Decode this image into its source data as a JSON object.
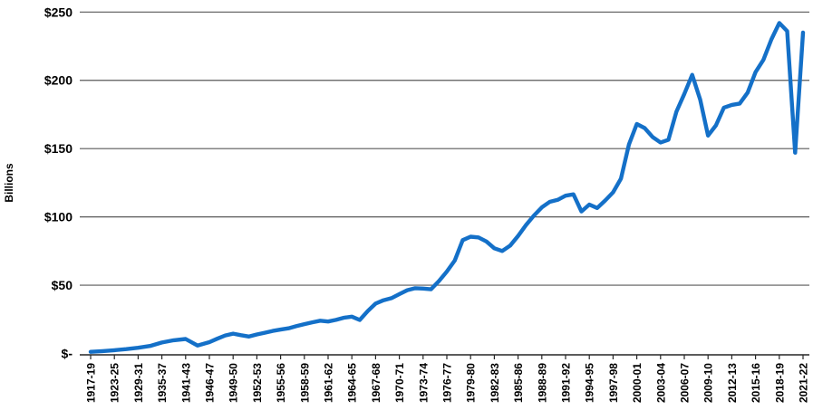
{
  "chart_data": {
    "type": "line",
    "title": "",
    "ylabel": "Billions",
    "xlabel": "",
    "ylim": [
      0,
      250
    ],
    "grid": "horizontal",
    "legend": "none",
    "y_ticks": [
      {
        "label": "$250",
        "value": 250
      },
      {
        "label": "$200",
        "value": 200
      },
      {
        "label": "$150",
        "value": 150
      },
      {
        "label": "$100",
        "value": 100
      },
      {
        "label": "$50",
        "value": 50
      },
      {
        "label": "$-",
        "value": 0
      }
    ],
    "x_tick_labels": [
      "1917-19",
      "1923-25",
      "1929-31",
      "1935-37",
      "1941-43",
      "1946-47",
      "1949-50",
      "1952-53",
      "1955-56",
      "1958-59",
      "1961-62",
      "1964-65",
      "1967-68",
      "1970-71",
      "1973-74",
      "1976-77",
      "1979-80",
      "1982-83",
      "1985-86",
      "1988-89",
      "1991-92",
      "1994-95",
      "1997-98",
      "2000-01",
      "2003-04",
      "2006-07",
      "2009-10",
      "2012-13",
      "2015-16",
      "2018-19",
      "2021-22"
    ],
    "x_note": "First 10 points are multi-year periods (labeled every 2nd point); from 1946-47 onward points are annual fiscal years (labeled every 3rd point).",
    "era1_points": 10,
    "line_color": "#1470C8",
    "gridline_color": "#595959",
    "axis_color": "#262626",
    "series": [
      {
        "name": "Dollars (Billions)",
        "points": [
          {
            "period": "1917-19",
            "value": 1.2
          },
          {
            "period": "1920-22",
            "value": 1.7
          },
          {
            "period": "1923-25",
            "value": 2.4
          },
          {
            "period": "1926-28",
            "value": 3.2
          },
          {
            "period": "1929-31",
            "value": 4.2
          },
          {
            "period": "1932-34",
            "value": 5.5
          },
          {
            "period": "1935-37",
            "value": 8.0
          },
          {
            "period": "1938-40",
            "value": 9.7
          },
          {
            "period": "1941-43",
            "value": 10.6
          },
          {
            "period": "1944-46",
            "value": 5.8
          },
          {
            "period": "1946-47",
            "value": 8.3
          },
          {
            "period": "1947-48",
            "value": 10.8
          },
          {
            "period": "1948-49",
            "value": 13.2
          },
          {
            "period": "1949-50",
            "value": 14.5
          },
          {
            "period": "1950-51",
            "value": 13.4
          },
          {
            "period": "1951-52",
            "value": 12.4
          },
          {
            "period": "1952-53",
            "value": 13.9
          },
          {
            "period": "1953-54",
            "value": 15.2
          },
          {
            "period": "1954-55",
            "value": 16.5
          },
          {
            "period": "1955-56",
            "value": 17.5
          },
          {
            "period": "1956-57",
            "value": 18.4
          },
          {
            "period": "1957-58",
            "value": 20.0
          },
          {
            "period": "1958-59",
            "value": 21.5
          },
          {
            "period": "1959-60",
            "value": 22.8
          },
          {
            "period": "1960-61",
            "value": 24.0
          },
          {
            "period": "1961-62",
            "value": 23.4
          },
          {
            "period": "1962-63",
            "value": 24.6
          },
          {
            "period": "1963-64",
            "value": 26.2
          },
          {
            "period": "1964-65",
            "value": 27.0
          },
          {
            "period": "1965-66",
            "value": 24.5
          },
          {
            "period": "1966-67",
            "value": 31.0
          },
          {
            "period": "1967-68",
            "value": 36.5
          },
          {
            "period": "1968-69",
            "value": 39.0
          },
          {
            "period": "1969-70",
            "value": 40.5
          },
          {
            "period": "1970-71",
            "value": 43.5
          },
          {
            "period": "1971-72",
            "value": 46.3
          },
          {
            "period": "1972-73",
            "value": 47.8
          },
          {
            "period": "1973-74",
            "value": 47.5
          },
          {
            "period": "1974-75",
            "value": 47.0
          },
          {
            "period": "1975-76",
            "value": 53.0
          },
          {
            "period": "1976-77",
            "value": 60.0
          },
          {
            "period": "1977-78",
            "value": 68.0
          },
          {
            "period": "1978-79",
            "value": 83.0
          },
          {
            "period": "1979-80",
            "value": 85.5
          },
          {
            "period": "1980-81",
            "value": 85.0
          },
          {
            "period": "1981-82",
            "value": 82.0
          },
          {
            "period": "1982-83",
            "value": 77.0
          },
          {
            "period": "1983-84",
            "value": 75.0
          },
          {
            "period": "1984-85",
            "value": 79.0
          },
          {
            "period": "1985-86",
            "value": 86.0
          },
          {
            "period": "1986-87",
            "value": 94.0
          },
          {
            "period": "1987-88",
            "value": 101.0
          },
          {
            "period": "1988-89",
            "value": 107.0
          },
          {
            "period": "1989-90",
            "value": 111.0
          },
          {
            "period": "1990-91",
            "value": 112.5
          },
          {
            "period": "1991-92",
            "value": 115.5
          },
          {
            "period": "1992-93",
            "value": 116.5
          },
          {
            "period": "1993-94",
            "value": 104.0
          },
          {
            "period": "1994-95",
            "value": 109.0
          },
          {
            "period": "1995-96",
            "value": 106.5
          },
          {
            "period": "1996-97",
            "value": 112.0
          },
          {
            "period": "1997-98",
            "value": 118.0
          },
          {
            "period": "1998-99",
            "value": 128.0
          },
          {
            "period": "1999-00",
            "value": 153.0
          },
          {
            "period": "2000-01",
            "value": 168.0
          },
          {
            "period": "2001-02",
            "value": 165.0
          },
          {
            "period": "2002-03",
            "value": 158.5
          },
          {
            "period": "2003-04",
            "value": 154.5
          },
          {
            "period": "2004-05",
            "value": 156.5
          },
          {
            "period": "2005-06",
            "value": 177.0
          },
          {
            "period": "2006-07",
            "value": 190.0
          },
          {
            "period": "2007-08",
            "value": 204.0
          },
          {
            "period": "2008-09",
            "value": 186.0
          },
          {
            "period": "2009-10",
            "value": 159.5
          },
          {
            "period": "2010-11",
            "value": 167.0
          },
          {
            "period": "2011-12",
            "value": 180.0
          },
          {
            "period": "2012-13",
            "value": 182.0
          },
          {
            "period": "2013-14",
            "value": 183.0
          },
          {
            "period": "2014-15",
            "value": 191.0
          },
          {
            "period": "2015-16",
            "value": 206.0
          },
          {
            "period": "2016-17",
            "value": 215.0
          },
          {
            "period": "2017-18",
            "value": 230.0
          },
          {
            "period": "2018-19",
            "value": 242.0
          },
          {
            "period": "2019-20",
            "value": 236.0
          },
          {
            "period": "2020-21",
            "value": 147.0
          },
          {
            "period": "2021-22",
            "value": 235.0
          }
        ]
      }
    ]
  }
}
